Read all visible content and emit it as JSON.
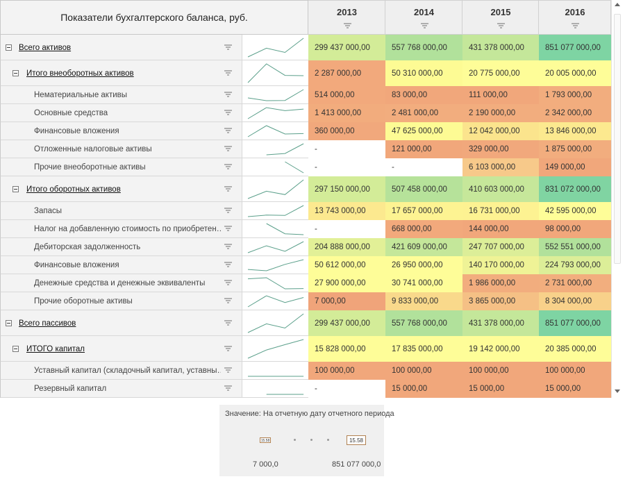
{
  "header": {
    "title": "Показатели бухгалтерского баланса, руб.",
    "years": [
      "2013",
      "2014",
      "2015",
      "2016"
    ]
  },
  "rows": [
    {
      "label": "Всего активов",
      "level": 0,
      "group": true,
      "values": [
        299437000,
        557768000,
        431378000,
        851077000
      ],
      "value_labels": [
        "299 437 000,00",
        "557 768 000,00",
        "431 378 000,00",
        "851 077 000,00"
      ],
      "colors": [
        "#d3ec98",
        "#b1e19b",
        "#c4e79a",
        "#7ed4a3"
      ]
    },
    {
      "label": "Итого внеоборотных активов",
      "level": 1,
      "group": true,
      "values": [
        2287000,
        50310000,
        20775000,
        20005000
      ],
      "value_labels": [
        "2 287 000,00",
        "50 310 000,00",
        "20 775 000,00",
        "20 005 000,00"
      ],
      "colors": [
        "#f2a97c",
        "#fdfb94",
        "#fefd98",
        "#fefd98"
      ]
    },
    {
      "label": "Нематериальные активы",
      "level": 2,
      "group": false,
      "values": [
        514000,
        83000,
        111000,
        1793000
      ],
      "value_labels": [
        "514 000,00",
        "83 000,00",
        "111 000,00",
        "1 793 000,00"
      ],
      "colors": [
        "#f2a97c",
        "#f1a77b",
        "#f1a77b",
        "#f2ad7e"
      ]
    },
    {
      "label": "Основные средства",
      "level": 2,
      "group": false,
      "values": [
        1413000,
        2481000,
        2190000,
        2342000
      ],
      "value_labels": [
        "1 413 000,00",
        "2 481 000,00",
        "2 190 000,00",
        "2 342 000,00"
      ],
      "colors": [
        "#f2ac7d",
        "#f2ad7e",
        "#f2ad7e",
        "#f2ad7e"
      ]
    },
    {
      "label": "Финансовые вложения",
      "level": 2,
      "group": false,
      "values": [
        360000,
        47625000,
        12042000,
        13846000
      ],
      "value_labels": [
        "360 000,00",
        "47 625 000,00",
        "12 042 000,00",
        "13 846 000,00"
      ],
      "colors": [
        "#f1a87c",
        "#fdfb94",
        "#fbe48d",
        "#fce98f"
      ]
    },
    {
      "label": "Отложенные налоговые активы",
      "level": 2,
      "group": false,
      "values": [
        null,
        121000,
        329000,
        1875000
      ],
      "value_labels": [
        "-",
        "121 000,00",
        "329 000,00",
        "1 875 000,00"
      ],
      "colors": [
        "#ffffff",
        "#f1a77b",
        "#f1a87c",
        "#f2ad7e"
      ]
    },
    {
      "label": "Прочие внеоборотные активы",
      "level": 2,
      "group": false,
      "values": [
        null,
        null,
        6103000,
        149000
      ],
      "value_labels": [
        "-",
        "-",
        "6 103 000,00",
        "149 000,00"
      ],
      "colors": [
        "#ffffff",
        "#ffffff",
        "#f7c98a",
        "#f1a77b"
      ]
    },
    {
      "label": "Итого оборотных активов",
      "level": 1,
      "group": true,
      "values": [
        297150000,
        507458000,
        410603000,
        831072000
      ],
      "value_labels": [
        "297 150 000,00",
        "507 458 000,00",
        "410 603 000,00",
        "831 072 000,00"
      ],
      "colors": [
        "#d3ec98",
        "#b6e29a",
        "#c6e79a",
        "#80d4a2"
      ]
    },
    {
      "label": "Запасы",
      "level": 2,
      "group": false,
      "values": [
        13743000,
        17657000,
        16731000,
        42595000
      ],
      "value_labels": [
        "13 743 000,00",
        "17 657 000,00",
        "16 731 000,00",
        "42 595 000,00"
      ],
      "colors": [
        "#fce98f",
        "#fdf392",
        "#fdf292",
        "#fefd98"
      ]
    },
    {
      "label": "Налог на добавленную стоимость по приобретен…",
      "level": 2,
      "group": false,
      "values": [
        null,
        668000,
        144000,
        98000
      ],
      "value_labels": [
        "-",
        "668 000,00",
        "144 000,00",
        "98 000,00"
      ],
      "colors": [
        "#ffffff",
        "#f2a97c",
        "#f1a77b",
        "#f1a77b"
      ]
    },
    {
      "label": "Дебиторская задолженность",
      "level": 2,
      "group": false,
      "values": [
        204888000,
        421609000,
        247707000,
        552551000
      ],
      "value_labels": [
        "204 888 000,00",
        "421 609 000,00",
        "247 707 000,00",
        "552 551 000,00"
      ],
      "colors": [
        "#e2f097",
        "#c4e79a",
        "#dcee98",
        "#b1e19b"
      ]
    },
    {
      "label": "Финансовые вложения",
      "level": 2,
      "group": false,
      "values": [
        50612000,
        26950000,
        140170000,
        224793000
      ],
      "value_labels": [
        "50 612 000,00",
        "26 950 000,00",
        "140 170 000,00",
        "224 793 000,00"
      ],
      "colors": [
        "#fefd98",
        "#fefd98",
        "#eff396",
        "#dcee98"
      ]
    },
    {
      "label": "Денежные средства и денежные эквиваленты",
      "level": 2,
      "group": false,
      "values": [
        27900000,
        30741000,
        1986000,
        2731000
      ],
      "value_labels": [
        "27 900 000,00",
        "30 741 000,00",
        "1 986 000,00",
        "2 731 000,00"
      ],
      "colors": [
        "#fefd98",
        "#fefd98",
        "#f2ad7e",
        "#f2ae7e"
      ]
    },
    {
      "label": "Прочие оборотные активы",
      "level": 2,
      "group": false,
      "values": [
        7000,
        9833000,
        3865000,
        8304000
      ],
      "value_labels": [
        "7 000,00",
        "9 833 000,00",
        "3 865 000,00",
        "8 304 000,00"
      ],
      "colors": [
        "#f0a47a",
        "#f9d98b",
        "#f5c085",
        "#f8d18a"
      ]
    },
    {
      "label": "Всего пассивов",
      "level": 0,
      "group": true,
      "values": [
        299437000,
        557768000,
        431378000,
        851077000
      ],
      "value_labels": [
        "299 437 000,00",
        "557 768 000,00",
        "431 378 000,00",
        "851 077 000,00"
      ],
      "colors": [
        "#d3ec98",
        "#b1e19b",
        "#c4e79a",
        "#7ed4a3"
      ]
    },
    {
      "label": "ИТОГО капитал",
      "level": 1,
      "group": true,
      "values": [
        15828000,
        17835000,
        19142000,
        20385000
      ],
      "value_labels": [
        "15 828 000,00",
        "17 835 000,00",
        "19 142 000,00",
        "20 385 000,00"
      ],
      "colors": [
        "#fefd98",
        "#fefd98",
        "#fefd98",
        "#fefd98"
      ]
    },
    {
      "label": "Уставный капитал (складочный капитал, уставны…",
      "level": 2,
      "group": false,
      "values": [
        100000,
        100000,
        100000,
        100000
      ],
      "value_labels": [
        "100 000,00",
        "100 000,00",
        "100 000,00",
        "100 000,00"
      ],
      "colors": [
        "#f1a77b",
        "#f1a77b",
        "#f1a77b",
        "#f1a77b"
      ]
    },
    {
      "label": "Резервный капитал",
      "level": 2,
      "group": false,
      "values": [
        null,
        15000,
        15000,
        15000
      ],
      "value_labels": [
        "-",
        "15 000,00",
        "15 000,00",
        "15 000,00"
      ],
      "colors": [
        "#ffffff",
        "#f1a77b",
        "#f1a77b",
        "#f1a77b"
      ]
    }
  ],
  "legend": {
    "title": "Значение: На отчетную дату отчетного периода",
    "icon_label": "15.58",
    "min": "7 000,0",
    "max": "851 077 000,0"
  }
}
